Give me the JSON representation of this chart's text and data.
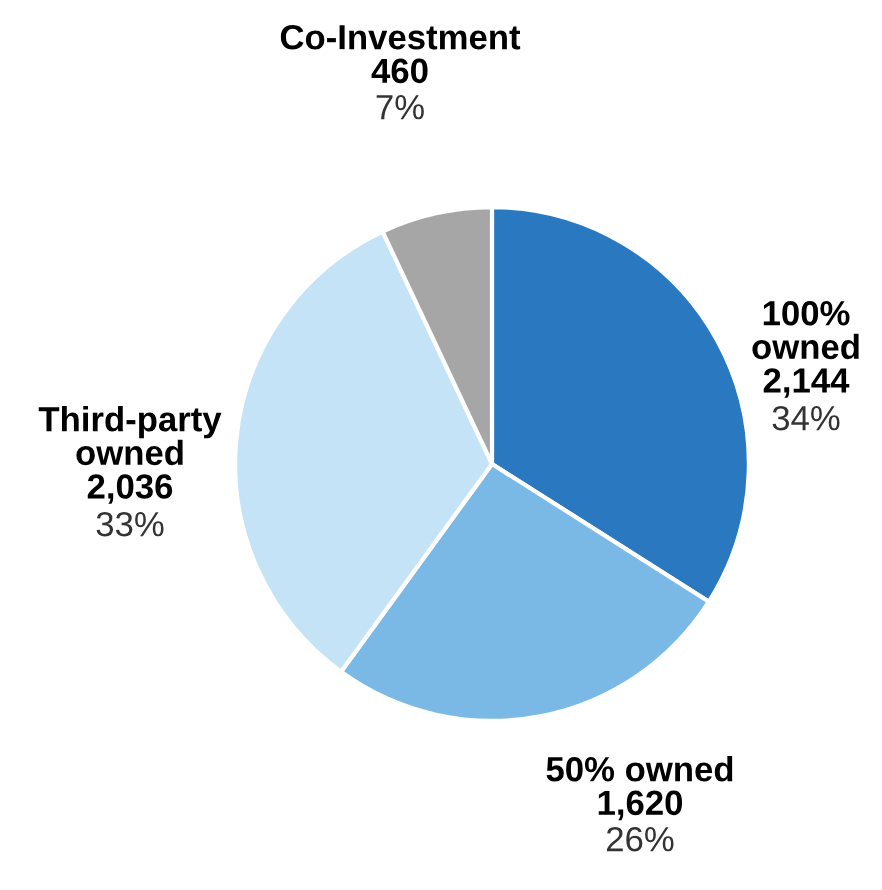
{
  "chart_data": {
    "type": "pie",
    "categories": [
      "100% owned",
      "50% owned",
      "Third-party owned",
      "Co-Investment"
    ],
    "values": [
      34,
      26,
      33,
      7
    ],
    "value_labels": [
      "2,144\n34%",
      "1,620\n26%",
      "2,036\n33%",
      "460\n7%"
    ],
    "colors": [
      "#2a78bf",
      "#7ab8e6",
      "#c5e3f7",
      "#a6a6a6"
    ]
  }
}
